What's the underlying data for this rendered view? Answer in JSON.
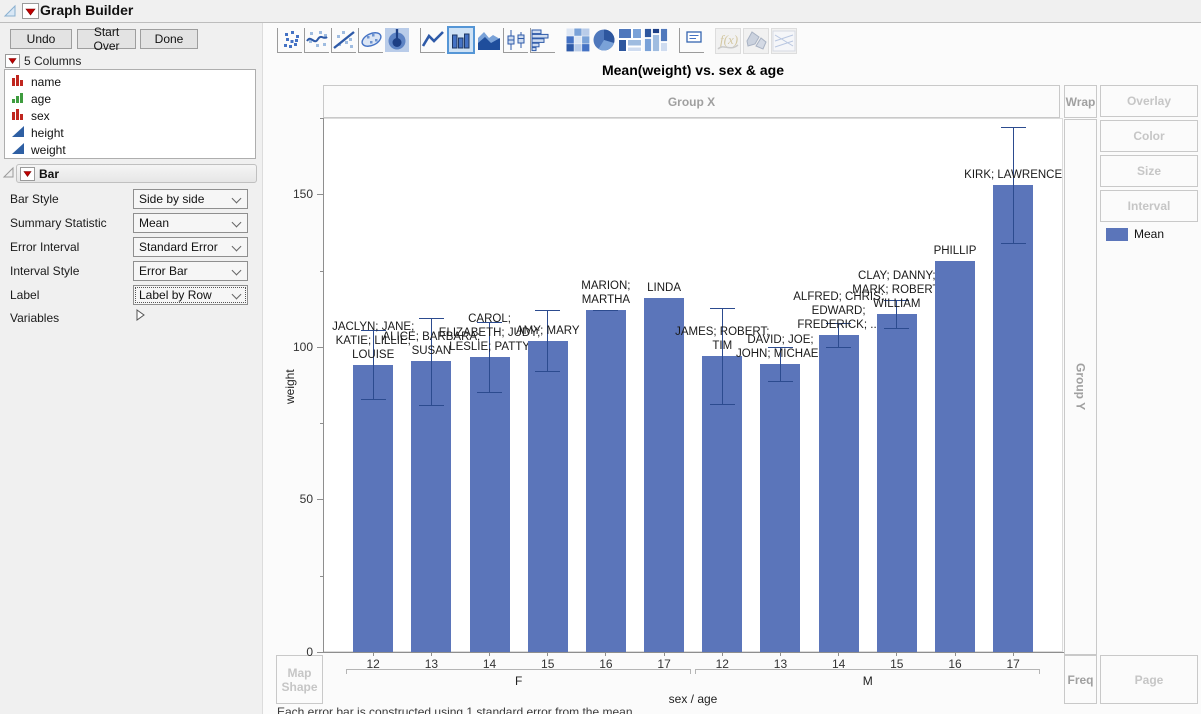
{
  "window": {
    "title": "Graph Builder"
  },
  "buttons": {
    "undo": "Undo",
    "start_over": "Start Over",
    "done": "Done"
  },
  "columns_panel": {
    "header": "5 Columns",
    "items": [
      {
        "name": "name",
        "type": "nominal",
        "icon": "nominal-red-bars-icon"
      },
      {
        "name": "age",
        "type": "ordinal",
        "icon": "ordinal-green-bars-icon"
      },
      {
        "name": "sex",
        "type": "nominal",
        "icon": "nominal-red-bars-icon"
      },
      {
        "name": "height",
        "type": "continuous",
        "icon": "continuous-blue-triangle-icon"
      },
      {
        "name": "weight",
        "type": "continuous",
        "icon": "continuous-blue-triangle-icon"
      }
    ]
  },
  "bar_panel": {
    "header": "Bar",
    "controls": [
      {
        "label": "Bar Style",
        "value": "Side by side",
        "focused": false
      },
      {
        "label": "Summary Statistic",
        "value": "Mean",
        "focused": false
      },
      {
        "label": "Error Interval",
        "value": "Standard Error",
        "focused": false
      },
      {
        "label": "Interval Style",
        "value": "Error Bar",
        "focused": false
      },
      {
        "label": "Label",
        "value": "Label by Row",
        "focused": true
      }
    ],
    "variables_label": "Variables"
  },
  "toolbar_icons": [
    {
      "name": "points-icon"
    },
    {
      "name": "smoother-icon"
    },
    {
      "name": "line-of-fit-icon"
    },
    {
      "name": "ellipse-icon"
    },
    {
      "name": "contour-icon"
    },
    {
      "name": "line-chart-icon",
      "group_start": true
    },
    {
      "name": "bar-chart-icon",
      "selected": true
    },
    {
      "name": "area-chart-icon"
    },
    {
      "name": "box-plot-icon"
    },
    {
      "name": "histogram-icon"
    },
    {
      "name": "heatmap-icon",
      "group_start": true
    },
    {
      "name": "pie-chart-icon"
    },
    {
      "name": "treemap-icon"
    },
    {
      "name": "mosaic-icon"
    },
    {
      "name": "caption-box-icon",
      "group_start": true
    },
    {
      "name": "formula-icon",
      "disabled": true,
      "group_start": true
    },
    {
      "name": "map-shapes-icon",
      "disabled": true
    },
    {
      "name": "parallel-plot-icon",
      "disabled": true
    }
  ],
  "zones": {
    "group_x": "Group X",
    "wrap": "Wrap",
    "overlay": "Overlay",
    "color": "Color",
    "size": "Size",
    "interval": "Interval",
    "group_y": "Group Y",
    "map_shape": "Map Shape",
    "freq": "Freq",
    "page": "Page"
  },
  "legend": {
    "entries": [
      {
        "label": "Mean",
        "color": "#5b75ba"
      }
    ]
  },
  "footnote": "Each error bar is constructed using 1 standard error from the mean.",
  "chart_data": {
    "type": "bar",
    "title": "Mean(weight) vs. sex & age",
    "xlabel": "sex / age",
    "ylabel": "weight",
    "ylim": [
      0,
      175
    ],
    "yticks_major": [
      0,
      50,
      100,
      150
    ],
    "yticks_minor": [
      25,
      75,
      125,
      175
    ],
    "grid": false,
    "legend_position": "right",
    "series_name": "Mean",
    "bar_color": "#5b75ba",
    "error_color": "#2c4b8f",
    "error_interval": "1 standard error",
    "groups": [
      {
        "label": "F",
        "ages": [
          "12",
          "13",
          "14",
          "15",
          "16",
          "17"
        ]
      },
      {
        "label": "M",
        "ages": [
          "12",
          "13",
          "14",
          "15",
          "16",
          "17"
        ]
      }
    ],
    "points": [
      {
        "sex": "F",
        "age": "12",
        "mean": 94.2,
        "stderr": 11.4,
        "label_lines": [
          "JACLYN; JANE;",
          "KATIE; LILLIE;",
          "LOUISE"
        ]
      },
      {
        "sex": "F",
        "age": "13",
        "mean": 95.3,
        "stderr": 14.2,
        "label_lines": [
          "ALICE; BARBARA;",
          "SUSAN"
        ]
      },
      {
        "sex": "F",
        "age": "14",
        "mean": 96.6,
        "stderr": 11.5,
        "label_lines": [
          "CAROL;",
          "ELIZABETH; JUDY;",
          "LESLIE; PATTY"
        ]
      },
      {
        "sex": "F",
        "age": "15",
        "mean": 102,
        "stderr": 10,
        "label_lines": [
          "AMY; MARY"
        ]
      },
      {
        "sex": "F",
        "age": "16",
        "mean": 112,
        "stderr": 0,
        "label_lines": [
          "MARION;",
          "MARTHA"
        ]
      },
      {
        "sex": "F",
        "age": "17",
        "mean": 116,
        "stderr": null,
        "label_lines": [
          "LINDA"
        ]
      },
      {
        "sex": "M",
        "age": "12",
        "mean": 97,
        "stderr": 15.6,
        "label_lines": [
          "JAMES; ROBERT;",
          "TIM"
        ]
      },
      {
        "sex": "M",
        "age": "13",
        "mean": 94.3,
        "stderr": 5.5,
        "label_lines": [
          "DAVID; JOE;",
          "JOHN; MICHAEL"
        ]
      },
      {
        "sex": "M",
        "age": "14",
        "mean": 103.9,
        "stderr": 4.0,
        "label_lines": [
          "ALFRED; CHRIS;",
          "EDWARD;",
          "FREDERICK; ..."
        ]
      },
      {
        "sex": "M",
        "age": "15",
        "mean": 110.8,
        "stderr": 4.5,
        "label_lines": [
          "CLAY; DANNY;",
          "MARK; ROBERT;",
          "WILLIAM"
        ]
      },
      {
        "sex": "M",
        "age": "16",
        "mean": 128,
        "stderr": null,
        "label_lines": [
          "PHILLIP"
        ]
      },
      {
        "sex": "M",
        "age": "17",
        "mean": 153,
        "stderr": 19,
        "label_lines": [
          "KIRK; LAWRENCE"
        ]
      }
    ]
  }
}
